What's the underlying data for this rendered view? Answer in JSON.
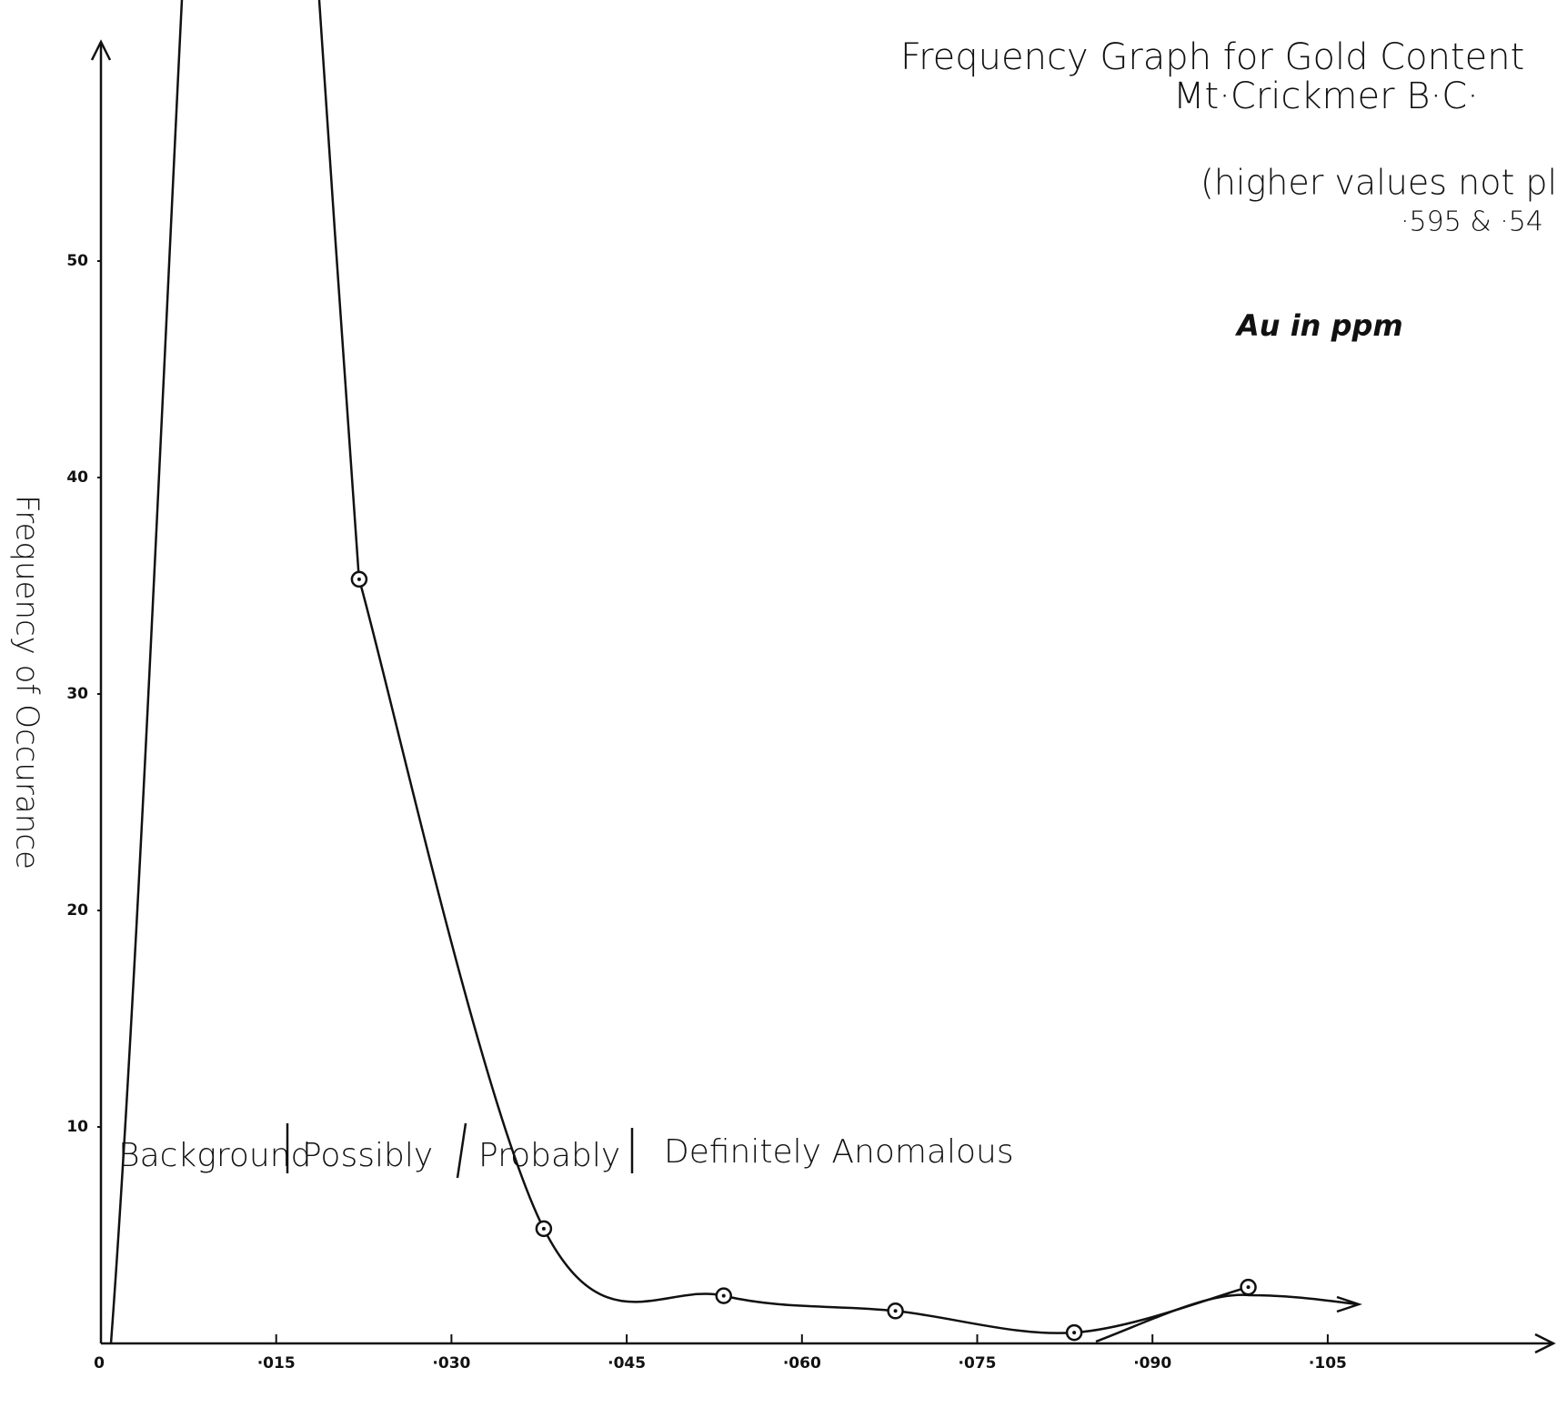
{
  "chart_data": {
    "type": "line",
    "title": "Frequency Graph for Gold Content",
    "subtitle": "Mt·Crickmer B·C·",
    "annotations": [
      "(higher values not pl",
      "·595 & ·54",
      "Au in ppm"
    ],
    "zones": [
      "Background",
      "Possibly",
      "Probably",
      "Definitely Anomalous"
    ],
    "y_label": "Frequency of Occurance",
    "series": [
      {
        "name": "Au",
        "color": "#111111",
        "x": [
          0.0221,
          0.0379,
          0.0533,
          0.068,
          0.0833,
          0.0982
        ],
        "values": [
          35.3,
          5.3,
          2.2,
          1.5,
          0.5,
          2.6
        ]
      }
    ],
    "xlim": [
      0,
      0.124
    ],
    "ylim": [
      0,
      60
    ],
    "xticks": [
      0,
      {
        "value": 0.015,
        "label": "·015"
      },
      {
        "value": 0.03,
        "label": "·030"
      },
      {
        "value": 0.045,
        "label": "·045"
      },
      {
        "value": 0.06,
        "label": "·060"
      },
      {
        "value": 0.075,
        "label": "·075"
      },
      {
        "value": 0.09,
        "label": "·090"
      },
      {
        "value": 0.105,
        "label": "·105"
      }
    ],
    "yticks": [
      10,
      20,
      30,
      40,
      50
    ]
  }
}
